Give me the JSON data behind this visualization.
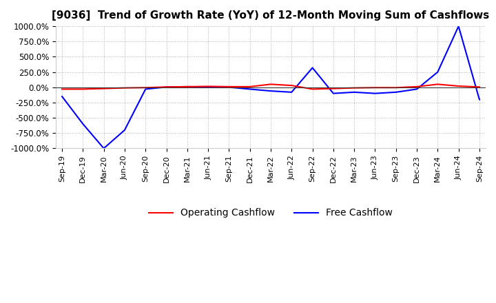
{
  "title": "[9036]  Trend of Growth Rate (YoY) of 12-Month Moving Sum of Cashflows",
  "title_fontsize": 11,
  "ylim": [
    -1000,
    1000
  ],
  "yticks": [
    -1000,
    -750,
    -500,
    -250,
    0,
    250,
    500,
    750,
    1000
  ],
  "ytick_labels": [
    "-1000.0%",
    "-750.0%",
    "-500.0%",
    "-250.0%",
    "0.0%",
    "250.0%",
    "500.0%",
    "750.0%",
    "1000.0%"
  ],
  "background_color": "#ffffff",
  "grid_color": "#aaaaaa",
  "operating_color": "#ff0000",
  "free_color": "#0000ff",
  "legend_labels": [
    "Operating Cashflow",
    "Free Cashflow"
  ],
  "x_labels": [
    "Sep-19",
    "Dec-19",
    "Mar-20",
    "Jun-20",
    "Sep-20",
    "Dec-20",
    "Mar-21",
    "Jun-21",
    "Sep-21",
    "Dec-21",
    "Mar-22",
    "Jun-22",
    "Sep-22",
    "Dec-22",
    "Mar-23",
    "Jun-23",
    "Sep-23",
    "Dec-23",
    "Mar-24",
    "Jun-24",
    "Sep-24"
  ],
  "operating_cashflow": [
    -30,
    -30,
    -20,
    -10,
    -5,
    5,
    10,
    15,
    10,
    10,
    50,
    30,
    -30,
    -20,
    -10,
    -5,
    -5,
    10,
    50,
    20,
    5
  ],
  "free_cashflow": [
    -150,
    -600,
    -1000,
    -700,
    -30,
    5,
    10,
    5,
    2,
    -30,
    -60,
    -80,
    320,
    -100,
    -80,
    -100,
    -80,
    -30,
    250,
    1000,
    -200
  ]
}
